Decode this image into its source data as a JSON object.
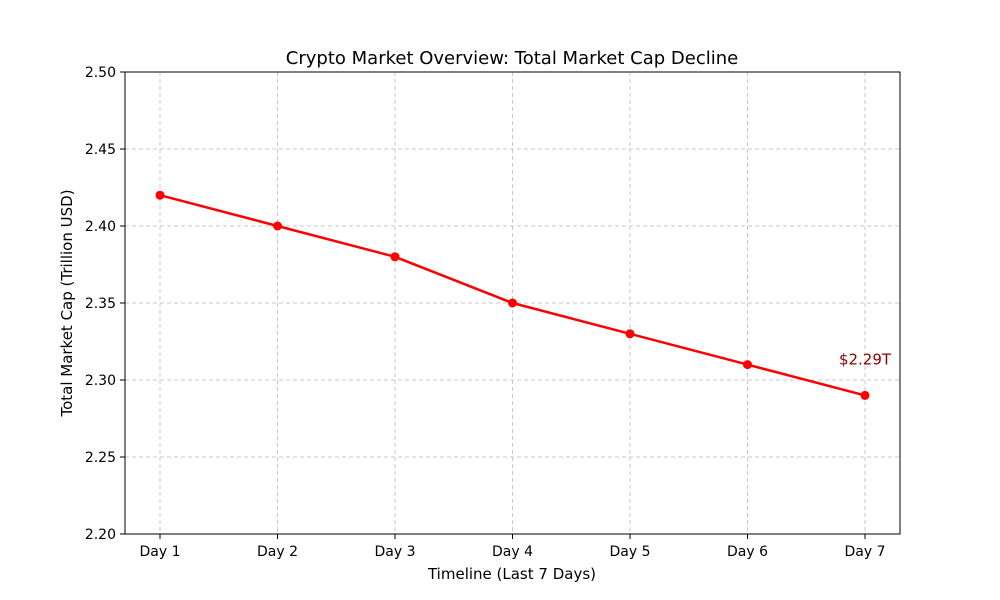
{
  "chart_data": {
    "type": "line",
    "title": "Crypto Market Overview: Total Market Cap Decline",
    "xlabel": "Timeline (Last 7 Days)",
    "ylabel": "Total Market Cap (Trillion USD)",
    "categories": [
      "Day 1",
      "Day 2",
      "Day 3",
      "Day 4",
      "Day 5",
      "Day 6",
      "Day 7"
    ],
    "series": [
      {
        "values": [
          2.42,
          2.4,
          2.38,
          2.35,
          2.33,
          2.31,
          2.29
        ],
        "color": "#ff0000"
      }
    ],
    "ylim": [
      2.2,
      2.5
    ],
    "yticks": [
      "2.20",
      "2.25",
      "2.30",
      "2.35",
      "2.40",
      "2.45",
      "2.50"
    ],
    "grid": true,
    "annotation": {
      "text": "$2.29T",
      "category": "Day 7",
      "value": 2.29,
      "color": "#8b0000"
    }
  }
}
